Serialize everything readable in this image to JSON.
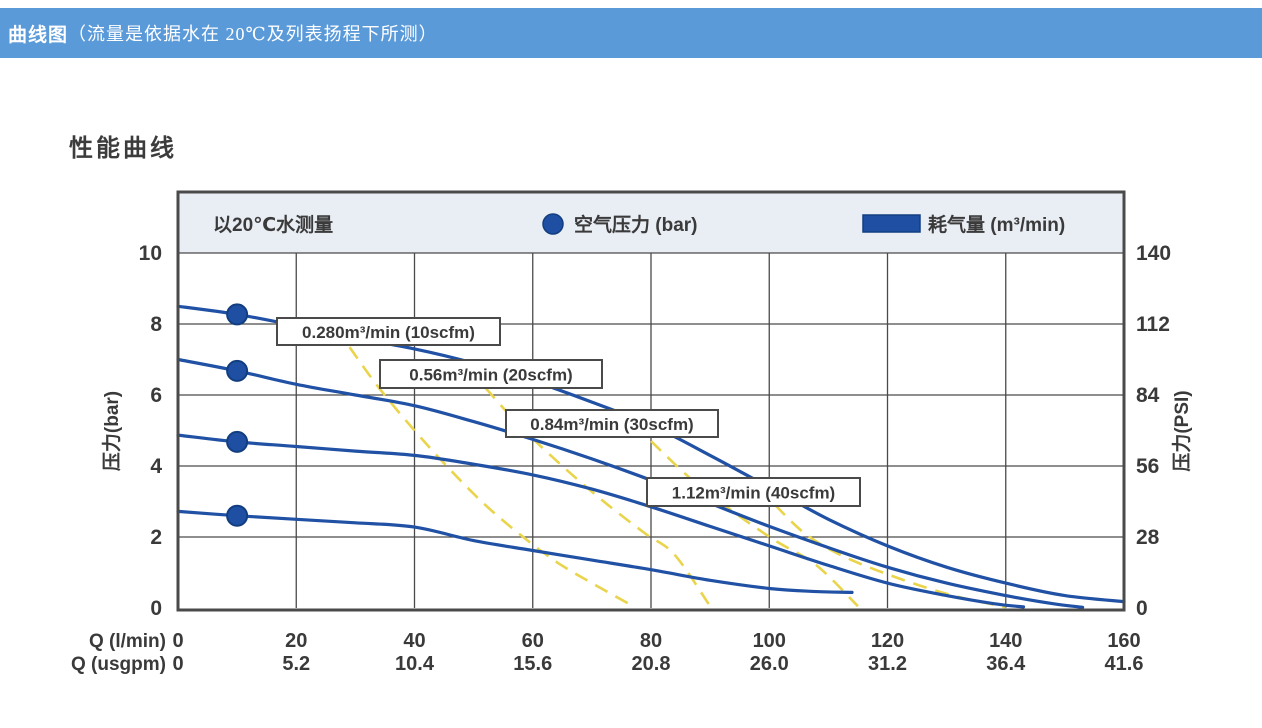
{
  "header": {
    "prefix": "曲线图",
    "rest": "（流量是依据水在 20℃及列表扬程下所测）",
    "bg_color": "#5B9AD9"
  },
  "section_title": "性能曲线",
  "chart_data": {
    "type": "line",
    "title": "性能曲线",
    "legend": [
      {
        "label": "以20℃水测量",
        "marker": "none"
      },
      {
        "label": "空气压力 (bar)",
        "marker": "circle"
      },
      {
        "label": "耗气量 (m³/min)",
        "marker": "swatch"
      }
    ],
    "axes": {
      "x_primary": {
        "label": "Q (l/min)",
        "ticks": [
          "0",
          "20",
          "40",
          "60",
          "80",
          "100",
          "120",
          "140",
          "160"
        ],
        "range": [
          0,
          160
        ]
      },
      "x_secondary": {
        "label": "Q (usgpm)",
        "ticks": [
          "0",
          "5.2",
          "10.4",
          "15.6",
          "20.8",
          "26.0",
          "31.2",
          "36.4",
          "41.6"
        ]
      },
      "y_left": {
        "label": "压力(bar)",
        "ticks": [
          "0",
          "2",
          "4",
          "6",
          "8",
          "10"
        ],
        "range": [
          0,
          10
        ]
      },
      "y_right": {
        "label": "压力(PSI)",
        "ticks": [
          "0",
          "28",
          "56",
          "84",
          "112",
          "140"
        ]
      },
      "grid": true
    },
    "pressure_curves": [
      {
        "name": "air-8.3bar",
        "points": [
          [
            0,
            8.5
          ],
          [
            10,
            8.27
          ],
          [
            20,
            7.95
          ],
          [
            30,
            7.6
          ],
          [
            40,
            7.3
          ],
          [
            50,
            6.9
          ],
          [
            60,
            6.4
          ],
          [
            70,
            5.8
          ],
          [
            80,
            5.15
          ],
          [
            90,
            4.3
          ],
          [
            100,
            3.4
          ],
          [
            110,
            2.5
          ],
          [
            120,
            1.75
          ],
          [
            130,
            1.15
          ],
          [
            140,
            0.7
          ],
          [
            150,
            0.35
          ],
          [
            160,
            0.18
          ]
        ]
      },
      {
        "name": "air-6.7bar",
        "points": [
          [
            0,
            7.0
          ],
          [
            10,
            6.68
          ],
          [
            20,
            6.3
          ],
          [
            30,
            6.0
          ],
          [
            40,
            5.7
          ],
          [
            50,
            5.25
          ],
          [
            60,
            4.75
          ],
          [
            70,
            4.2
          ],
          [
            80,
            3.6
          ],
          [
            90,
            2.95
          ],
          [
            100,
            2.3
          ],
          [
            110,
            1.7
          ],
          [
            120,
            1.15
          ],
          [
            130,
            0.7
          ],
          [
            140,
            0.35
          ],
          [
            148,
            0.12
          ],
          [
            153,
            0.02
          ]
        ]
      },
      {
        "name": "air-4.7bar",
        "points": [
          [
            0,
            4.87
          ],
          [
            10,
            4.68
          ],
          [
            20,
            4.55
          ],
          [
            30,
            4.42
          ],
          [
            40,
            4.3
          ],
          [
            50,
            4.05
          ],
          [
            60,
            3.75
          ],
          [
            70,
            3.35
          ],
          [
            80,
            2.85
          ],
          [
            90,
            2.3
          ],
          [
            100,
            1.75
          ],
          [
            110,
            1.2
          ],
          [
            120,
            0.7
          ],
          [
            130,
            0.35
          ],
          [
            138,
            0.12
          ],
          [
            143,
            0.03
          ]
        ]
      },
      {
        "name": "air-2.6bar",
        "points": [
          [
            0,
            2.72
          ],
          [
            10,
            2.6
          ],
          [
            20,
            2.5
          ],
          [
            30,
            2.4
          ],
          [
            40,
            2.28
          ],
          [
            50,
            1.9
          ],
          [
            60,
            1.62
          ],
          [
            70,
            1.35
          ],
          [
            80,
            1.08
          ],
          [
            90,
            0.78
          ],
          [
            100,
            0.55
          ],
          [
            107,
            0.47
          ],
          [
            114,
            0.44
          ]
        ]
      }
    ],
    "air_pressure_points": [
      {
        "flow": 10,
        "bar": 8.27
      },
      {
        "flow": 10,
        "bar": 6.68
      },
      {
        "flow": 10,
        "bar": 4.68
      },
      {
        "flow": 10,
        "bar": 2.6
      }
    ],
    "consumption_labels": [
      {
        "label": "0.280m³/min (10scfm)"
      },
      {
        "label": "0.56m³/min (20scfm)"
      },
      {
        "label": "0.84m³/min (30scfm)"
      },
      {
        "label": "1.12m³/min (40scfm)"
      }
    ],
    "consumption_contours": [
      {
        "name": "0.280",
        "points": [
          [
            29,
            7.35
          ],
          [
            34,
            6.2
          ],
          [
            40,
            5.0
          ],
          [
            46,
            3.9
          ],
          [
            52,
            2.9
          ],
          [
            58,
            2.05
          ],
          [
            64,
            1.3
          ],
          [
            70,
            0.7
          ],
          [
            77,
            0.05
          ]
        ]
      },
      {
        "name": "0.56",
        "points": [
          [
            52,
            6.2
          ],
          [
            58,
            5.1
          ],
          [
            65,
            4.0
          ],
          [
            72,
            3.0
          ],
          [
            79,
            2.1
          ],
          [
            84,
            1.5
          ],
          [
            90,
            0.05
          ]
        ]
      },
      {
        "name": "0.84",
        "points": [
          [
            80,
            4.7
          ],
          [
            87,
            3.6
          ],
          [
            94,
            2.7
          ],
          [
            101,
            1.9
          ],
          [
            108,
            1.2
          ],
          [
            115,
            0.05
          ]
        ]
      },
      {
        "name": "1.12",
        "points": [
          [
            101,
            2.9
          ],
          [
            106,
            2.1
          ],
          [
            112,
            1.5
          ],
          [
            120,
            0.95
          ],
          [
            130,
            0.4
          ],
          [
            140,
            0.02
          ]
        ]
      }
    ],
    "colors": {
      "curve": "#2051A4",
      "contour": "#E9D44C",
      "grid": "#4A4A4A",
      "border": "#4A4A4A",
      "legend_band": "#E9EDF4",
      "dot_fill": "#1E4FA3",
      "dot_stroke": "#123E80",
      "label_box_bg": "#FFFFFF",
      "text": "#3A3A3A"
    }
  }
}
